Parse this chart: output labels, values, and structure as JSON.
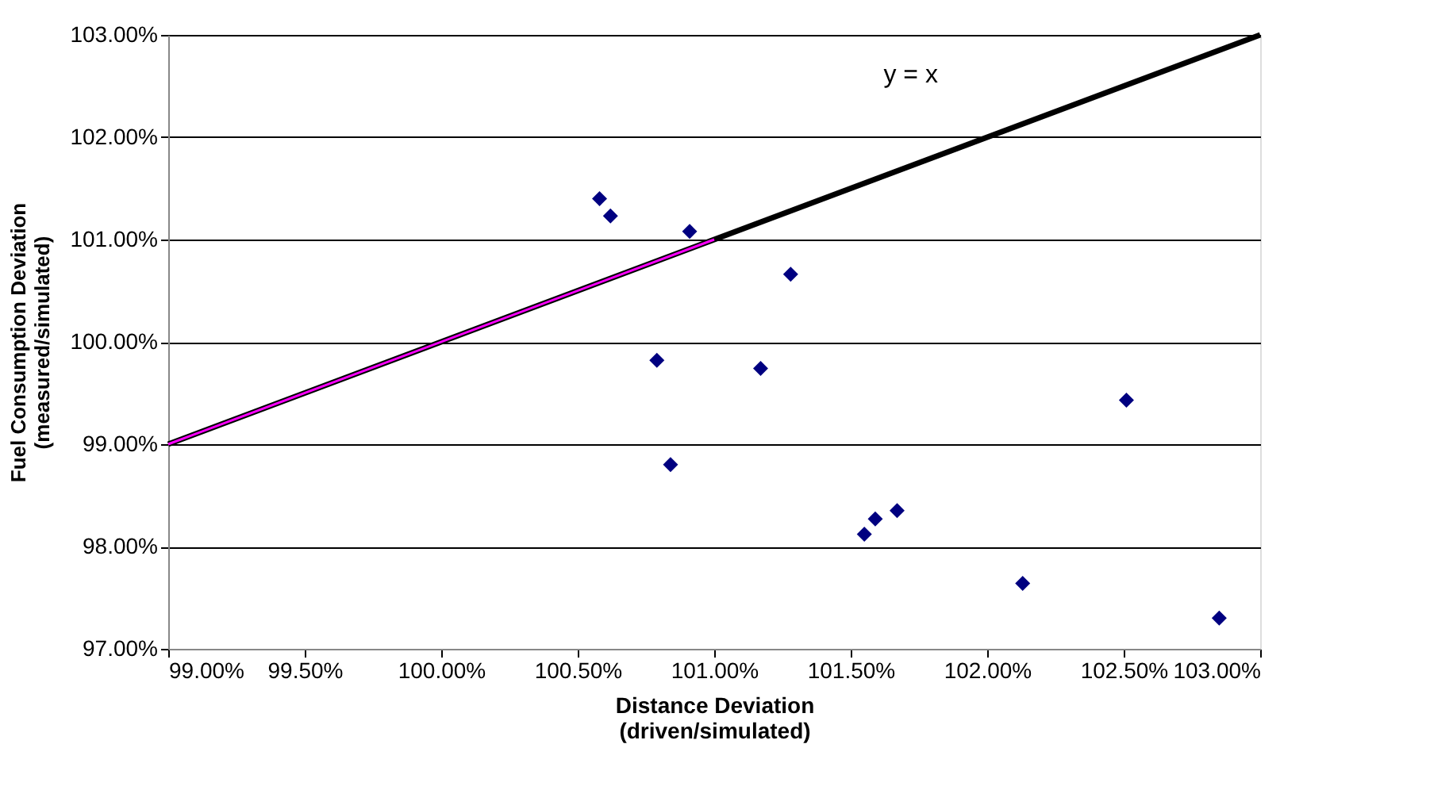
{
  "chart_data": {
    "type": "scatter",
    "xlabel": "Distance Deviation\n(driven/simulated)",
    "ylabel": "Fuel Consumption Deviation\n(measured/simulated)",
    "series": [
      {
        "type": "line",
        "color": "#000000",
        "line_style": "solid",
        "x": [
          99.0,
          103.0
        ],
        "values": [
          99.0,
          103.0
        ]
      },
      {
        "type": "line",
        "color": "#ff00ff",
        "line_style": "solid",
        "x": [
          99.0,
          101.0
        ],
        "values": [
          99.0,
          101.0
        ]
      },
      {
        "color": "#000080",
        "marker": "diamond",
        "x": [
          100.58,
          100.62,
          100.91,
          101.28,
          100.79,
          101.17,
          100.84,
          101.55,
          101.59,
          101.67,
          102.51,
          102.13,
          102.85
        ],
        "values": [
          101.4,
          101.23,
          101.08,
          100.66,
          99.82,
          99.74,
          98.8,
          98.12,
          98.27,
          98.35,
          99.43,
          97.64,
          97.3
        ]
      }
    ],
    "annotations": [
      "y = x"
    ],
    "xlim": [
      99.0,
      103.0
    ],
    "xticks": [
      {
        "value": 99.0,
        "label": "99.00%"
      },
      {
        "value": 99.5,
        "label": "99.50%"
      },
      {
        "value": 100.0,
        "label": "100.00%"
      },
      {
        "value": 100.5,
        "label": "100.50%"
      },
      {
        "value": 101.0,
        "label": "101.00%"
      },
      {
        "value": 101.5,
        "label": "101.50%"
      },
      {
        "value": 102.0,
        "label": "102.00%"
      },
      {
        "value": 102.5,
        "label": "102.50%"
      },
      {
        "value": 103.0,
        "label": "103.00%"
      }
    ],
    "ylim": [
      97.0,
      103.0
    ],
    "yticks": [
      {
        "value": 97.0,
        "label": "97.00%"
      },
      {
        "value": 98.0,
        "label": "98.00%"
      },
      {
        "value": 99.0,
        "label": "99.00%"
      },
      {
        "value": 100.0,
        "label": "100.00%"
      },
      {
        "value": 101.0,
        "label": "101.00%"
      },
      {
        "value": 102.0,
        "label": "102.00%"
      },
      {
        "value": 103.0,
        "label": "103.00%"
      }
    ],
    "grid": "y"
  }
}
